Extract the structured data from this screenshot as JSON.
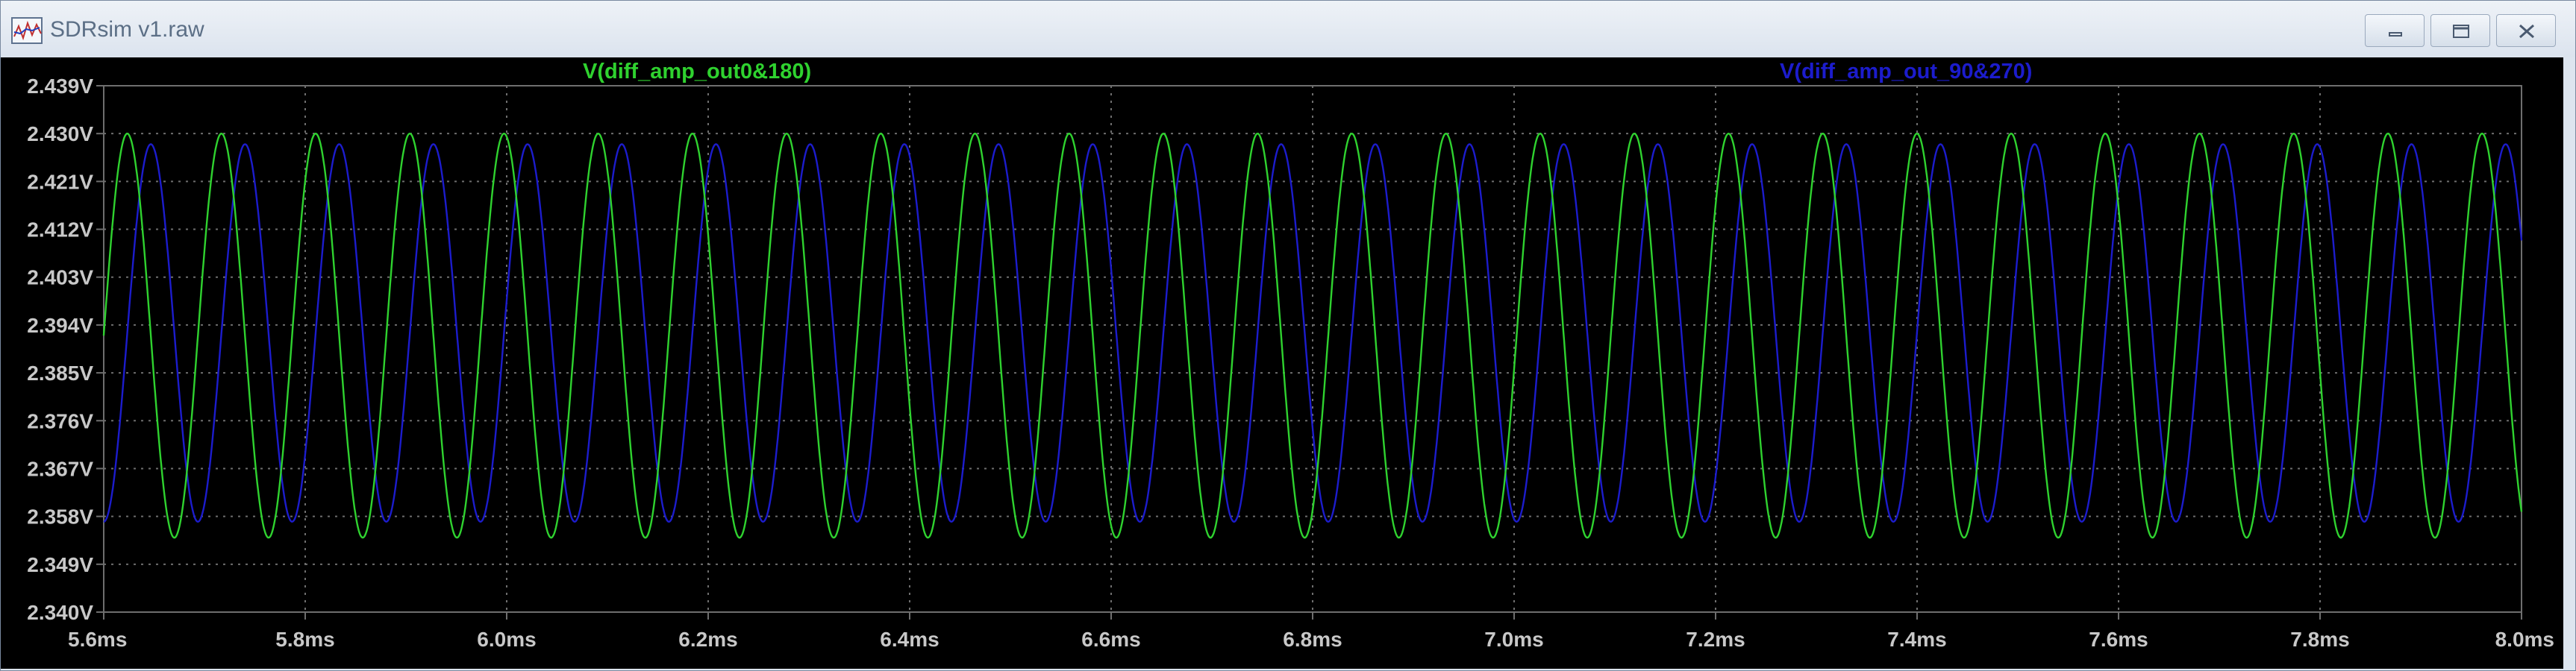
{
  "window": {
    "title": "SDRsim v1.raw",
    "minimize_icon": "minimize-icon",
    "maximize_icon": "restore-icon",
    "close_icon": "close-icon"
  },
  "plot": {
    "background": "#000000",
    "grid_color": "#6e6e6e",
    "grid": true,
    "traces": [
      {
        "name": "V(diff_amp_out0&180)",
        "color": "#2fd22f"
      },
      {
        "name": "V(diff_amp_out_90&270)",
        "color": "#1c1ccc"
      }
    ]
  },
  "chart_data": {
    "type": "line",
    "x_ticks": [
      "5.6ms",
      "5.8ms",
      "6.0ms",
      "6.2ms",
      "6.4ms",
      "6.6ms",
      "6.8ms",
      "7.0ms",
      "7.2ms",
      "7.4ms",
      "7.6ms",
      "7.8ms",
      "8.0ms"
    ],
    "y_ticks": [
      "2.439V",
      "2.430V",
      "2.421V",
      "2.412V",
      "2.403V",
      "2.394V",
      "2.385V",
      "2.376V",
      "2.367V",
      "2.358V",
      "2.349V",
      "2.340V"
    ],
    "xlim": [
      5.6,
      8.0
    ],
    "ylim": [
      2.34,
      2.439
    ],
    "x_unit": "ms",
    "y_unit": "V",
    "series": [
      {
        "name": "V(diff_amp_out0&180)",
        "kind": "sine",
        "min": 2.354,
        "max": 2.43,
        "period_ms": 0.0935,
        "phase": 0.0,
        "color": "#2fd22f"
      },
      {
        "name": "V(diff_amp_out_90&270)",
        "kind": "sine",
        "min": 2.357,
        "max": 2.428,
        "period_ms": 0.0935,
        "phase": -0.25,
        "color": "#1c1ccc"
      }
    ]
  }
}
